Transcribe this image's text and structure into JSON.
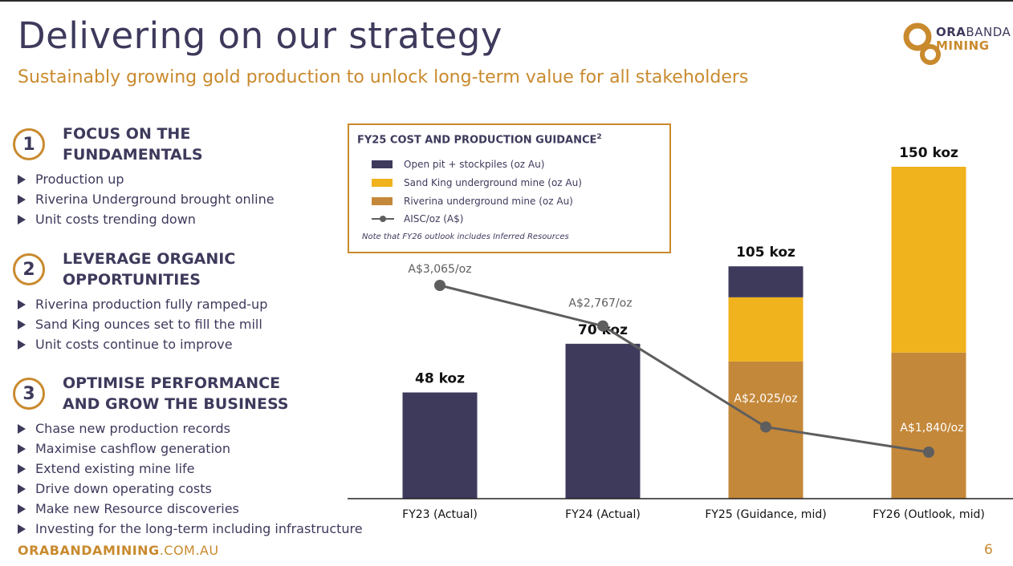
{
  "header": {
    "title": "Delivering on our strategy",
    "subtitle": "Sustainably growing gold production to unlock long-term value for all stakeholders",
    "logo_line1_bold": "ORA",
    "logo_line1_light": "BANDA",
    "logo_line2": "MINING"
  },
  "sections": [
    {
      "number": "1",
      "title": "FOCUS ON THE FUNDAMENTALS",
      "bullets": [
        "Production up",
        "Riverina Underground brought online",
        "Unit costs trending down"
      ]
    },
    {
      "number": "2",
      "title": "LEVERAGE ORGANIC OPPORTUNITIES",
      "bullets": [
        "Riverina production fully ramped-up",
        "Sand King ounces set to fill the mill",
        "Unit costs continue to improve"
      ]
    },
    {
      "number": "3",
      "title": "OPTIMISE PERFORMANCE AND GROW THE BUSINESS",
      "bullets": [
        "Chase new production records",
        "Maximise cashflow generation",
        "Extend existing mine life",
        "Drive down operating costs",
        "Make new Resource discoveries",
        "Investing for the long-term including infrastructure"
      ]
    }
  ],
  "footer": {
    "site_bold": "ORABANDA",
    "site_mid": "MINING",
    "site_tail": ".COM.AU",
    "page": "6"
  },
  "legend": {
    "title": "FY25 COST AND PRODUCTION GUIDANCE",
    "title_sup": "2",
    "note": "Note that FY26 outlook includes Inferred Resources"
  },
  "colors": {
    "navy": "#3d3a5c",
    "yellow": "#f0b21d",
    "orange": "#c4883a",
    "line": "#5e5e5e",
    "accent": "#c98a2e"
  },
  "chart_data": {
    "type": "bar",
    "stacked": true,
    "categories": [
      "FY23 (Actual)",
      "FY24 (Actual)",
      "FY25 (Guidance, mid)",
      "FY26 (Outlook, mid)"
    ],
    "series": [
      {
        "name": "Open pit + stockpiles (oz Au)",
        "color": "#3d3a5c",
        "values": [
          48,
          70,
          14,
          0
        ]
      },
      {
        "name": "Sand King underground mine (oz Au)",
        "color": "#f0b21d",
        "values": [
          0,
          0,
          29,
          84
        ]
      },
      {
        "name": "Riverina underground mine (oz Au)",
        "color": "#c4883a",
        "values": [
          0,
          0,
          62,
          66
        ]
      }
    ],
    "total_labels": [
      "48 koz",
      "70 koz",
      "105 koz",
      "150 koz"
    ],
    "totals": [
      48,
      70,
      105,
      150
    ],
    "ylim": [
      0,
      155
    ],
    "line_series": {
      "name": "AISC/oz (A$)",
      "values": [
        3065,
        2767,
        2025,
        1840
      ],
      "labels": [
        "A$3,065/oz",
        "A$2,767/oz",
        "A$2,025/oz",
        "A$1,840/oz"
      ],
      "ylim": [
        0,
        5000
      ]
    },
    "legend_position": "top-left",
    "grid": false
  }
}
